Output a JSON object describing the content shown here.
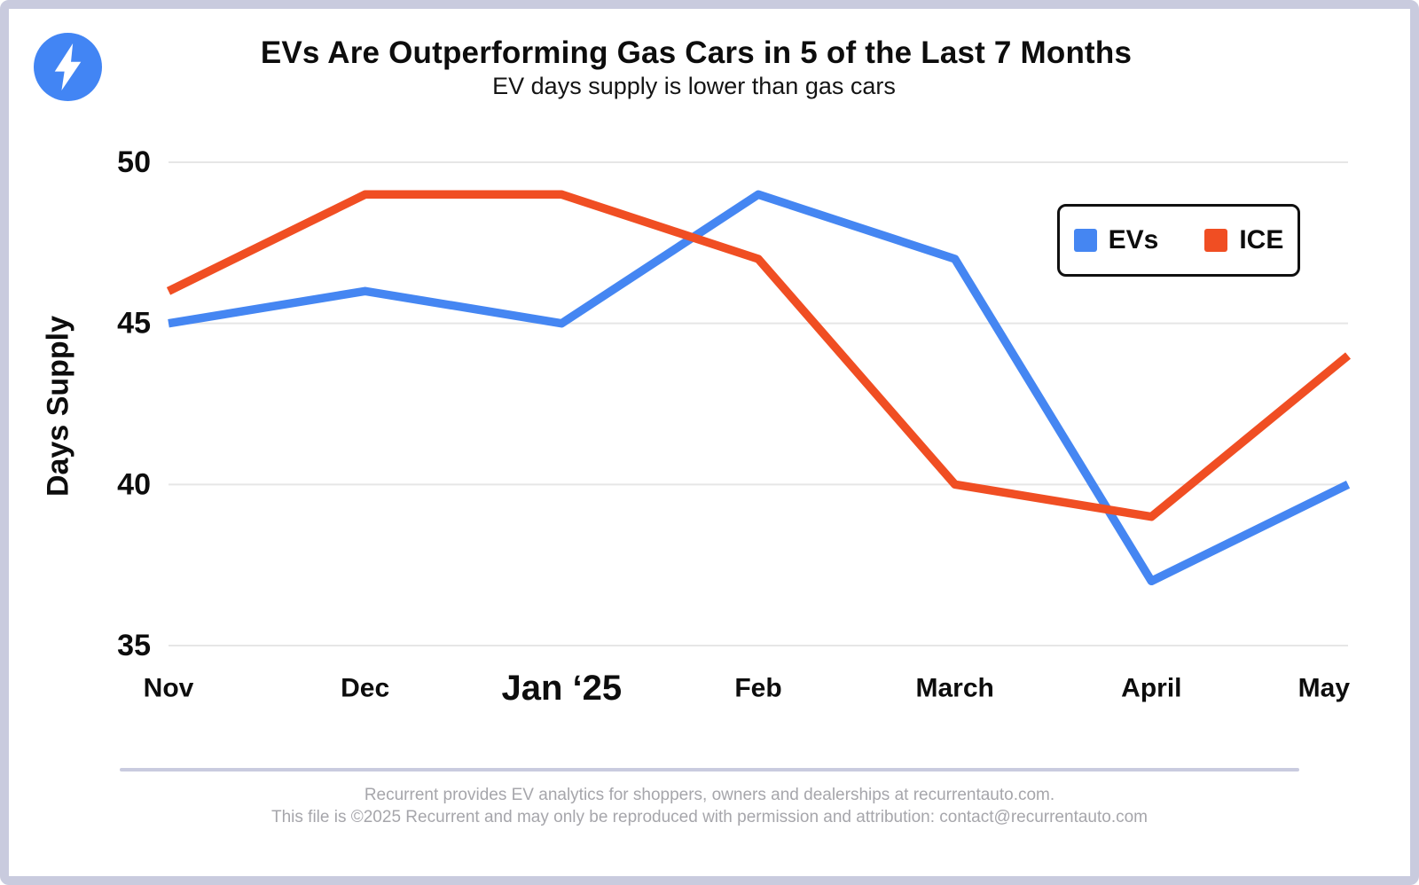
{
  "page": {
    "title": "EVs Are Outperforming Gas Cars in 5 of the Last 7 Months",
    "subtitle": "EV days supply is lower than gas cars",
    "logo_icon": "lightning-bolt-icon"
  },
  "chart_data": {
    "type": "line",
    "categories": [
      "Nov",
      "Dec",
      "Jan ‘25",
      "Feb",
      "March",
      "April",
      "May"
    ],
    "emphasized_category": "Jan ‘25",
    "series": [
      {
        "name": "EVs",
        "color": "#4586F2",
        "values": [
          45,
          46,
          45,
          49,
          47,
          37,
          40
        ]
      },
      {
        "name": "ICE",
        "color": "#F04E23",
        "values": [
          46,
          49,
          49,
          47,
          40,
          39,
          44
        ]
      }
    ],
    "ylabel": "Days Supply",
    "xlabel": "",
    "yticks": [
      35,
      40,
      45,
      50
    ],
    "ylim": [
      35,
      50
    ],
    "grid": "horizontal-only",
    "legend_position": "top-right",
    "line_on_top": "ICE"
  },
  "footer": {
    "line1": "Recurrent provides EV analytics for shoppers, owners and dealerships at recurrentauto.com.",
    "line2": "This file is ©2025 Recurrent and may only be reproduced with permission and attribution: contact@recurrentauto.com"
  },
  "colors": {
    "frame_border": "#c9cbde",
    "gridline": "#e6e6e6",
    "text": "#0d0d0d",
    "footer_text": "#a6a6ab",
    "logo_blue": "#4285F4",
    "ev_blue": "#4586F2",
    "ice_orange": "#F04E23"
  }
}
